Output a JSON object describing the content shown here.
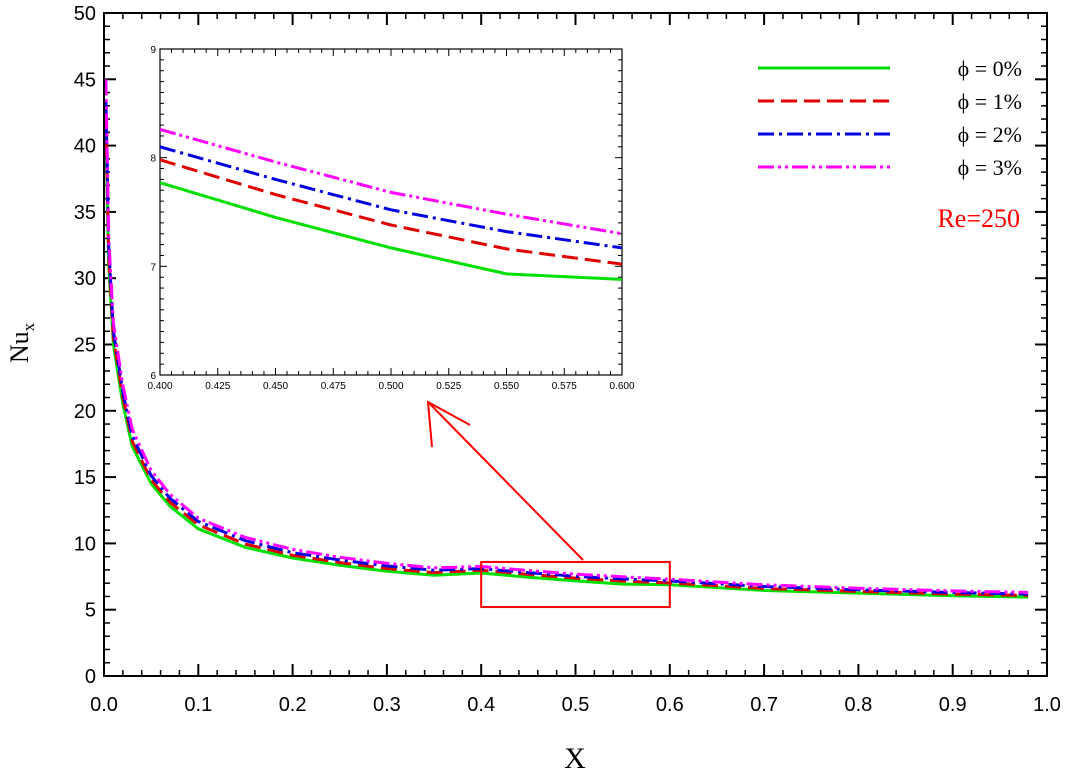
{
  "chart_data": {
    "type": "line",
    "xlabel": "X",
    "ylabel": "Nu",
    "ylabel_sub": "x",
    "xlim": [
      0,
      1
    ],
    "ylim": [
      0,
      50
    ],
    "x_ticks": [
      "0.0",
      "0.1",
      "0.2",
      "0.3",
      "0.4",
      "0.5",
      "0.6",
      "0.7",
      "0.8",
      "0.9",
      "1.0"
    ],
    "y_ticks": [
      "0",
      "5",
      "10",
      "15",
      "20",
      "25",
      "30",
      "35",
      "40",
      "45",
      "50"
    ],
    "legend_position": "top-right",
    "annotation": {
      "text": "Re=250",
      "color": "#ff0000"
    },
    "zoom_box": {
      "x": [
        0.4,
        0.6
      ],
      "y": [
        5.2,
        8.6
      ],
      "color": "#ff0000"
    },
    "series": [
      {
        "name": "ϕ = 0%",
        "color": "#00e000",
        "dash": "solid",
        "x": [
          0.002,
          0.005,
          0.01,
          0.02,
          0.03,
          0.05,
          0.07,
          0.1,
          0.15,
          0.2,
          0.25,
          0.3,
          0.35,
          0.4,
          0.45,
          0.5,
          0.55,
          0.6,
          0.7,
          0.8,
          0.9,
          0.98
        ],
        "y": [
          41,
          31,
          25,
          20.5,
          17.3,
          14.5,
          12.8,
          11.1,
          9.7,
          8.9,
          8.35,
          7.9,
          7.6,
          7.77,
          7.45,
          7.17,
          6.93,
          6.88,
          6.45,
          6.25,
          6.05,
          5.95
        ]
      },
      {
        "name": "ϕ = 1%",
        "color": "#e00000",
        "dash": "dashed",
        "x": [
          0.002,
          0.005,
          0.01,
          0.02,
          0.03,
          0.05,
          0.07,
          0.1,
          0.15,
          0.2,
          0.25,
          0.3,
          0.35,
          0.4,
          0.45,
          0.5,
          0.55,
          0.6,
          0.7,
          0.8,
          0.9,
          0.98
        ],
        "y": [
          42,
          31.7,
          25.5,
          21,
          17.7,
          14.8,
          13.1,
          11.4,
          9.95,
          9.1,
          8.55,
          8.1,
          7.8,
          7.98,
          7.66,
          7.38,
          7.16,
          7.02,
          6.6,
          6.38,
          6.18,
          6.07
        ]
      },
      {
        "name": "ϕ = 2%",
        "color": "#0000e0",
        "dash": "dashdot",
        "x": [
          0.002,
          0.005,
          0.01,
          0.02,
          0.03,
          0.05,
          0.07,
          0.1,
          0.15,
          0.2,
          0.25,
          0.3,
          0.35,
          0.4,
          0.45,
          0.5,
          0.55,
          0.6,
          0.7,
          0.8,
          0.9,
          0.98
        ],
        "y": [
          43.5,
          32.4,
          26,
          21.4,
          18.1,
          15.1,
          13.4,
          11.65,
          10.2,
          9.3,
          8.75,
          8.3,
          7.98,
          8.1,
          7.8,
          7.52,
          7.32,
          7.17,
          6.75,
          6.5,
          6.3,
          6.18
        ]
      },
      {
        "name": "ϕ = 3%",
        "color": "#ff00ff",
        "dash": "dashdotdot",
        "x": [
          0.002,
          0.005,
          0.01,
          0.02,
          0.03,
          0.05,
          0.07,
          0.1,
          0.15,
          0.2,
          0.25,
          0.3,
          0.35,
          0.4,
          0.45,
          0.5,
          0.55,
          0.6,
          0.7,
          0.8,
          0.9,
          0.98
        ],
        "y": [
          45,
          33.2,
          26.6,
          21.9,
          18.6,
          15.5,
          13.7,
          11.9,
          10.45,
          9.55,
          8.95,
          8.5,
          8.15,
          8.26,
          7.96,
          7.68,
          7.48,
          7.3,
          6.88,
          6.62,
          6.42,
          6.3
        ]
      }
    ],
    "inset": {
      "xlim": [
        0.4,
        0.6
      ],
      "ylim": [
        6,
        9
      ],
      "x_ticks": [
        "0.400",
        "0.425",
        "0.450",
        "0.475",
        "0.500",
        "0.525",
        "0.550",
        "0.575",
        "0.600"
      ],
      "y_ticks": [
        "6",
        "7",
        "8",
        "9"
      ]
    }
  }
}
